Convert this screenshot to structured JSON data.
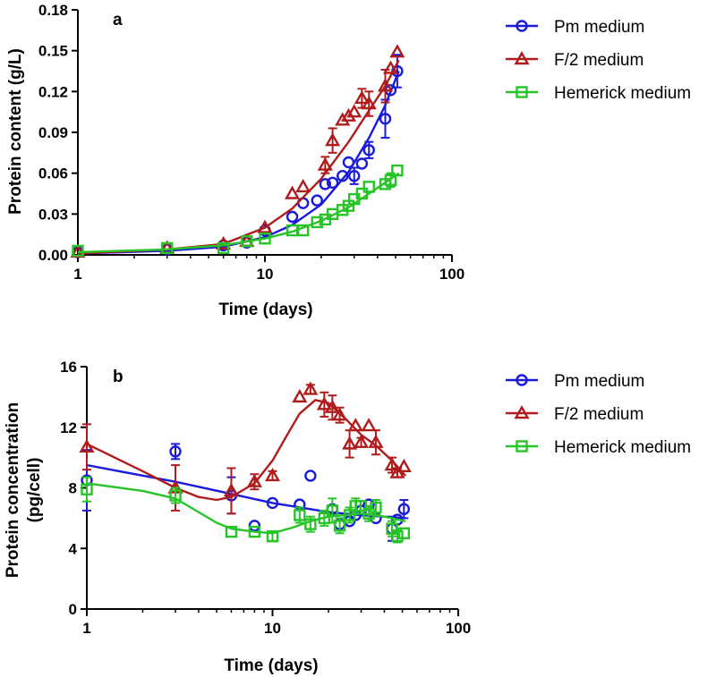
{
  "chart_data": [
    {
      "type": "scatter",
      "panel_label": "a",
      "xscale": "log",
      "xlabel": "Time (days)",
      "ylabel": "Protein content (g/L)",
      "xlim": [
        1,
        100
      ],
      "ylim": [
        0,
        0.18
      ],
      "xticks": [
        "1",
        "10",
        "100"
      ],
      "yticks": [
        "0.00",
        "0.03",
        "0.06",
        "0.09",
        "0.12",
        "0.15",
        "0.18"
      ],
      "legend_position": "top-right outside",
      "series": [
        {
          "name": "Pm medium",
          "color": "#1a1adb",
          "marker": "circle",
          "x": [
            1,
            3,
            6,
            8,
            10,
            14,
            16,
            19,
            21,
            23,
            26,
            28,
            30,
            33,
            36,
            44,
            47,
            51
          ],
          "y": [
            0.002,
            0.004,
            0.007,
            0.009,
            0.018,
            0.028,
            0.038,
            0.04,
            0.052,
            0.053,
            0.058,
            0.068,
            0.058,
            0.067,
            0.077,
            0.1,
            0.121,
            0.135
          ],
          "err": [
            0,
            0,
            0,
            0,
            0,
            0,
            0,
            0,
            0,
            0,
            0,
            0,
            0.006,
            0,
            0.006,
            0.014,
            0,
            0.012
          ],
          "fit": [
            [
              1,
              0.001
            ],
            [
              3,
              0.003
            ],
            [
              6,
              0.006
            ],
            [
              10,
              0.013
            ],
            [
              14,
              0.022
            ],
            [
              20,
              0.037
            ],
            [
              28,
              0.061
            ],
            [
              36,
              0.086
            ],
            [
              44,
              0.11
            ],
            [
              52,
              0.135
            ]
          ]
        },
        {
          "name": "F/2 medium",
          "color": "#b01c1c",
          "marker": "triangle",
          "x": [
            1,
            3,
            6,
            8,
            10,
            14,
            16,
            21,
            23,
            26,
            28,
            30,
            33,
            36,
            44,
            47,
            51
          ],
          "y": [
            0.002,
            0.005,
            0.008,
            0.01,
            0.02,
            0.045,
            0.05,
            0.066,
            0.084,
            0.099,
            0.102,
            0.105,
            0.115,
            0.111,
            0.124,
            0.137,
            0.149
          ],
          "err": [
            0,
            0,
            0,
            0,
            0,
            0,
            0,
            0.006,
            0.009,
            0,
            0,
            0,
            0.007,
            0.009,
            0.012,
            0,
            0
          ],
          "fit": [
            [
              1,
              0.001
            ],
            [
              3,
              0.004
            ],
            [
              6,
              0.008
            ],
            [
              10,
              0.02
            ],
            [
              14,
              0.034
            ],
            [
              20,
              0.056
            ],
            [
              28,
              0.083
            ],
            [
              36,
              0.106
            ],
            [
              44,
              0.124
            ],
            [
              52,
              0.143
            ]
          ]
        },
        {
          "name": "Hemerick medium",
          "color": "#27c427",
          "marker": "square",
          "x": [
            1,
            3,
            6,
            8,
            10,
            14,
            16,
            19,
            21,
            23,
            26,
            28,
            30,
            33,
            36,
            44,
            47,
            51
          ],
          "y": [
            0.003,
            0.005,
            0.005,
            0.01,
            0.012,
            0.018,
            0.018,
            0.024,
            0.026,
            0.03,
            0.033,
            0.036,
            0.041,
            0.045,
            0.05,
            0.052,
            0.055,
            0.062
          ],
          "err": [
            0,
            0,
            0,
            0,
            0,
            0,
            0,
            0,
            0,
            0,
            0,
            0,
            0,
            0,
            0,
            0,
            0.005,
            0
          ],
          "fit": [
            [
              1,
              0.002
            ],
            [
              3,
              0.004
            ],
            [
              6,
              0.007
            ],
            [
              10,
              0.012
            ],
            [
              14,
              0.017
            ],
            [
              20,
              0.025
            ],
            [
              28,
              0.035
            ],
            [
              36,
              0.045
            ],
            [
              44,
              0.053
            ],
            [
              52,
              0.06
            ]
          ]
        }
      ]
    },
    {
      "type": "scatter",
      "panel_label": "b",
      "xscale": "log",
      "xlabel": "Time (days)",
      "ylabel": "Protein concentration (pg/cell)",
      "ylabel_lines": [
        "Protein concentration",
        "(pg/cell)"
      ],
      "xlim": [
        1,
        100
      ],
      "ylim": [
        0,
        16
      ],
      "xticks": [
        "1",
        "10",
        "100"
      ],
      "yticks": [
        "0",
        "4",
        "8",
        "12",
        "16"
      ],
      "legend_position": "right outside",
      "series": [
        {
          "name": "Pm medium",
          "color": "#1a1adb",
          "marker": "circle",
          "x": [
            1,
            3,
            6,
            8,
            10,
            14,
            16,
            21,
            23,
            26,
            28,
            30,
            33,
            36,
            44,
            47,
            51
          ],
          "y": [
            8.5,
            10.4,
            7.5,
            5.5,
            7.0,
            6.9,
            8.8,
            6.6,
            5.6,
            5.8,
            6.2,
            6.5,
            6.9,
            6.0,
            5.3,
            5.9,
            6.6
          ],
          "err": [
            2.0,
            0.5,
            1.2,
            0,
            0,
            0,
            0,
            0,
            0,
            0,
            0,
            0,
            0,
            0,
            0.8,
            0,
            0.6
          ],
          "fit": [
            [
              1,
              9.5
            ],
            [
              3,
              8.4
            ],
            [
              6,
              7.6
            ],
            [
              10,
              7.0
            ],
            [
              20,
              6.4
            ],
            [
              30,
              6.2
            ],
            [
              40,
              6.1
            ],
            [
              52,
              6.0
            ]
          ]
        },
        {
          "name": "F/2 medium",
          "color": "#b01c1c",
          "marker": "triangle",
          "x": [
            1,
            3,
            6,
            8,
            10,
            14,
            16,
            19,
            21,
            23,
            26,
            28,
            30,
            33,
            36,
            44,
            47,
            51
          ],
          "y": [
            10.7,
            8.0,
            7.8,
            8.4,
            8.8,
            14.0,
            14.5,
            13.5,
            13.3,
            12.8,
            10.9,
            12.1,
            11.0,
            12.1,
            11.0,
            9.5,
            9.0,
            9.4
          ],
          "err": [
            1.5,
            1.5,
            1.5,
            0.5,
            0.3,
            0,
            0.3,
            0.8,
            0.8,
            0.5,
            0.9,
            0,
            0.3,
            0,
            0.8,
            0.5,
            0.3,
            0
          ],
          "fit": [
            [
              1,
              10.9
            ],
            [
              2,
              9.1
            ],
            [
              3,
              8.0
            ],
            [
              4,
              7.4
            ],
            [
              5,
              7.2
            ],
            [
              6,
              7.4
            ],
            [
              8,
              8.3
            ],
            [
              10,
              9.8
            ],
            [
              12,
              11.5
            ],
            [
              14,
              12.9
            ],
            [
              17,
              13.8
            ],
            [
              20,
              13.6
            ],
            [
              25,
              12.5
            ],
            [
              30,
              11.5
            ],
            [
              36,
              10.8
            ],
            [
              44,
              9.8
            ],
            [
              52,
              8.8
            ]
          ]
        },
        {
          "name": "Hemerick medium",
          "color": "#27c427",
          "marker": "square",
          "x": [
            1,
            3,
            6,
            8,
            10,
            14,
            16,
            19,
            21,
            23,
            26,
            28,
            30,
            33,
            36,
            44,
            47,
            51
          ],
          "y": [
            7.9,
            7.5,
            5.1,
            5.1,
            4.8,
            6.2,
            5.6,
            6.0,
            6.5,
            5.5,
            6.2,
            6.8,
            6.8,
            6.3,
            6.7,
            5.3,
            4.8,
            5.0
          ],
          "err": [
            0.8,
            0.5,
            0,
            0,
            0.3,
            0.5,
            0.5,
            0.5,
            0.8,
            0.5,
            0.5,
            0.5,
            0,
            0.5,
            0.5,
            0.5,
            0.4,
            0
          ],
          "fit": [
            [
              1,
              8.3
            ],
            [
              2,
              7.8
            ],
            [
              3,
              7.3
            ],
            [
              4,
              6.4
            ],
            [
              5,
              5.7
            ],
            [
              6,
              5.3
            ],
            [
              8,
              5.1
            ],
            [
              10,
              5.0
            ],
            [
              13,
              5.4
            ],
            [
              16,
              5.8
            ],
            [
              20,
              6.1
            ],
            [
              30,
              6.3
            ],
            [
              40,
              6.1
            ],
            [
              52,
              5.8
            ]
          ]
        }
      ]
    }
  ]
}
